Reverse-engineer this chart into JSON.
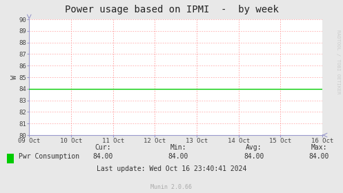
{
  "title": "Power usage based on IPMI  -  by week",
  "ylabel": "W",
  "bg_color": "#e8e8e8",
  "plot_bg_color": "#ffffff",
  "line_color": "#00cc00",
  "line_value": 84.0,
  "ylim": [
    80,
    90
  ],
  "yticks": [
    80,
    81,
    82,
    83,
    84,
    85,
    86,
    87,
    88,
    89,
    90
  ],
  "x_start": 0,
  "x_end": 7,
  "xtick_labels": [
    "09 Oct",
    "10 Oct",
    "11 Oct",
    "12 Oct",
    "13 Oct",
    "14 Oct",
    "15 Oct",
    "16 Oct"
  ],
  "xtick_positions": [
    0,
    1,
    2,
    3,
    4,
    5,
    6,
    7
  ],
  "vline_color": "#ff9999",
  "hline_color": "#ffaaaa",
  "legend_label": "Pwr Consumption",
  "legend_color": "#00cc00",
  "cur_val": "84.00",
  "min_val": "84.00",
  "avg_val": "84.00",
  "max_val": "84.00",
  "last_update": "Last update: Wed Oct 16 23:40:41 2024",
  "munin_text": "Munin 2.0.66",
  "watermark": "RADTOOL / TOBI OETIKER",
  "title_fontsize": 10,
  "axis_fontsize": 6.5,
  "legend_fontsize": 7,
  "stats_fontsize": 7,
  "munin_fontsize": 6,
  "watermark_fontsize": 5
}
